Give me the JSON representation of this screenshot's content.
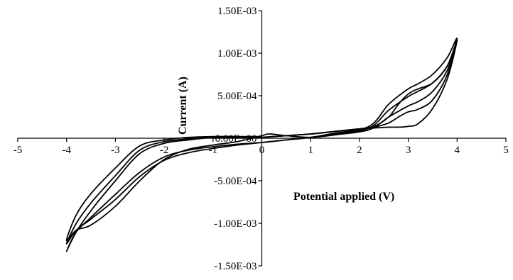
{
  "chart_data": {
    "type": "line",
    "title": "",
    "xlabel": "Potential applied (V)",
    "ylabel": "Current (A)",
    "xlim": [
      -5,
      5
    ],
    "ylim": [
      -0.0015,
      0.0015
    ],
    "x_ticks": [
      -5,
      -4,
      -3,
      -2,
      -1,
      0,
      1,
      2,
      3,
      4,
      5
    ],
    "x_tick_labels": [
      "-5",
      "-4",
      "-3",
      "-2",
      "-1",
      "0",
      "1",
      "2",
      "3",
      "4",
      "5"
    ],
    "y_ticks": [
      0.0015,
      0.001,
      0.0005,
      0,
      -0.0005,
      -0.001,
      -0.0015
    ],
    "y_tick_labels": [
      "1.50E-03",
      "1.00E-03",
      "5.00E-04",
      "0.00E+00",
      "-5.00E-04",
      "-1.00E-03",
      "-1.50E-03"
    ],
    "grid": false,
    "legend": "none",
    "series": [
      {
        "x": [
          0,
          0.5,
          1,
          1.5,
          2,
          2.3,
          2.6,
          2.8,
          3,
          3.2,
          3.5,
          3.8,
          4,
          3.8,
          3.5,
          3.2,
          3,
          2.6,
          2.2,
          1.5,
          1,
          0.5,
          0,
          -0.5,
          -1,
          -1.5,
          -2,
          -2.5,
          -3,
          -3.5,
          -3.8,
          -4,
          -3.8,
          -3.5,
          -3,
          -2.5,
          -2,
          -1.5,
          -1,
          -0.5,
          0
        ],
        "y": [
          1e-05,
          3e-05,
          5e-05,
          8e-05,
          0.00011,
          0.00012,
          0.00013,
          0.00013,
          0.00014,
          0.00017,
          0.00035,
          0.0007,
          0.00117,
          0.00095,
          0.00075,
          0.00064,
          0.00058,
          0.0004,
          0.00014,
          6e-05,
          1e-05,
          -2e-05,
          -5e-05,
          -7e-05,
          -0.0001,
          -0.00014,
          -0.00022,
          -0.0004,
          -0.00066,
          -0.00093,
          -0.0011,
          -0.00133,
          -0.0011,
          -0.00085,
          -0.0005,
          -0.00018,
          -6e-05,
          -2e-05,
          1e-05,
          1e-05,
          1e-05
        ]
      },
      {
        "x": [
          0,
          0.5,
          1,
          1.5,
          2,
          2.3,
          2.6,
          2.8,
          3,
          3.2,
          3.5,
          3.8,
          4,
          3.8,
          3.5,
          3.2,
          3,
          2.6,
          2.2,
          1.5,
          1,
          0.5,
          0,
          -0.5,
          -1,
          -1.5,
          -2,
          -2.5,
          -3,
          -3.5,
          -3.8,
          -4,
          -3.8,
          -3.5,
          -3,
          -2.5,
          -2,
          -1.5,
          -1,
          -0.5,
          0
        ],
        "y": [
          1e-05,
          3e-05,
          5e-05,
          8e-05,
          0.00011,
          0.00013,
          0.00018,
          0.00025,
          0.00031,
          0.00034,
          0.00045,
          0.00075,
          0.00116,
          0.00085,
          0.00065,
          0.00055,
          0.00049,
          0.00033,
          0.00012,
          5e-05,
          1e-05,
          -2e-05,
          -5e-05,
          -8e-05,
          -0.00012,
          -0.00017,
          -0.00026,
          -0.00045,
          -0.00072,
          -0.00095,
          -0.00108,
          -0.00124,
          -0.001,
          -0.00076,
          -0.00044,
          -0.00014,
          -4e-05,
          -1e-05,
          1e-05,
          1e-05,
          1e-05
        ]
      },
      {
        "x": [
          0,
          0.5,
          1,
          1.5,
          2,
          2.3,
          2.6,
          2.8,
          3,
          3.2,
          3.5,
          3.8,
          4,
          3.8,
          3.5,
          3.2,
          3,
          2.6,
          2.2,
          1.5,
          1,
          0.5,
          0.15,
          0,
          -0.5,
          -1,
          -1.5,
          -2,
          -2.5,
          -3,
          -3.5,
          -3.8,
          -4,
          -3.8,
          -3.5,
          -3,
          -2.5,
          -2,
          -1.5,
          -1,
          -0.5,
          0
        ],
        "y": [
          1e-05,
          3e-05,
          5e-05,
          8e-05,
          0.00011,
          0.00014,
          0.00025,
          0.0004,
          0.00052,
          0.00058,
          0.00065,
          0.00085,
          0.00115,
          0.0008,
          0.00055,
          0.00043,
          0.00038,
          0.00025,
          0.0001,
          4e-05,
          1e-05,
          3e-05,
          5e-05,
          3e-05,
          -4e-05,
          -8e-05,
          -0.00013,
          -0.00025,
          -0.0005,
          -0.0008,
          -0.00102,
          -0.00108,
          -0.0012,
          -0.0009,
          -0.00065,
          -0.00035,
          -9e-05,
          -2e-05,
          1e-05,
          2e-05,
          2e-05,
          2e-05
        ]
      }
    ]
  }
}
